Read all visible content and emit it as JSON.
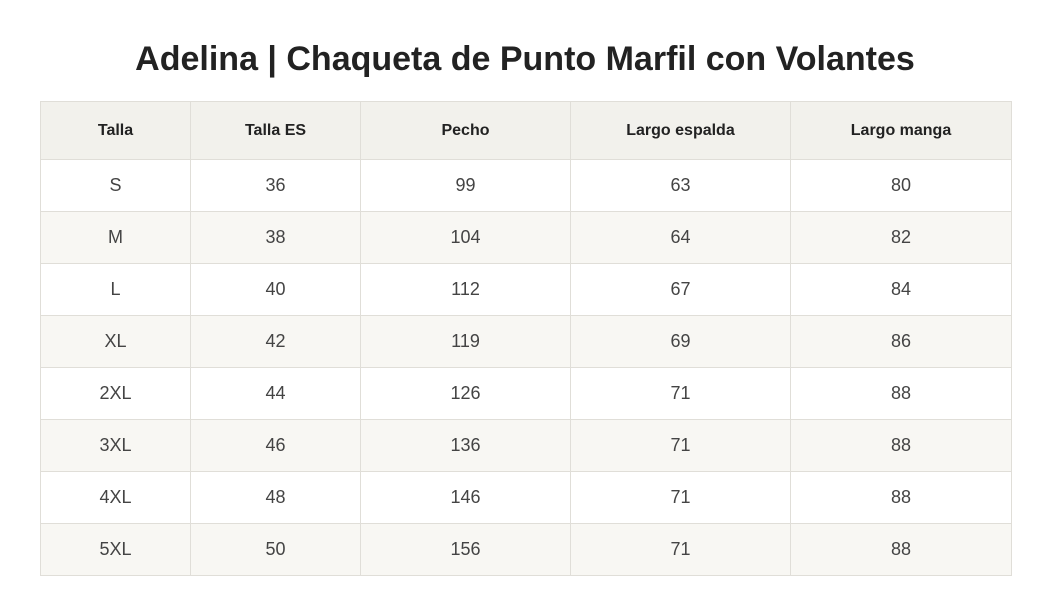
{
  "title": "Adelina | Chaqueta de Punto Marfil con Volantes",
  "table": {
    "headers": [
      "Talla",
      "Talla ES",
      "Pecho",
      "Largo espalda",
      "Largo manga"
    ],
    "rows": [
      [
        "S",
        "36",
        "99",
        "63",
        "80"
      ],
      [
        "M",
        "38",
        "104",
        "64",
        "82"
      ],
      [
        "L",
        "40",
        "112",
        "67",
        "84"
      ],
      [
        "XL",
        "42",
        "119",
        "69",
        "86"
      ],
      [
        "2XL",
        "44",
        "126",
        "71",
        "88"
      ],
      [
        "3XL",
        "46",
        "136",
        "71",
        "88"
      ],
      [
        "4XL",
        "48",
        "146",
        "71",
        "88"
      ],
      [
        "5XL",
        "50",
        "156",
        "71",
        "88"
      ]
    ]
  },
  "colors": {
    "header_background": "#f2f1ec",
    "striped_row_background": "#f8f7f3",
    "border": "#e0ded8"
  }
}
